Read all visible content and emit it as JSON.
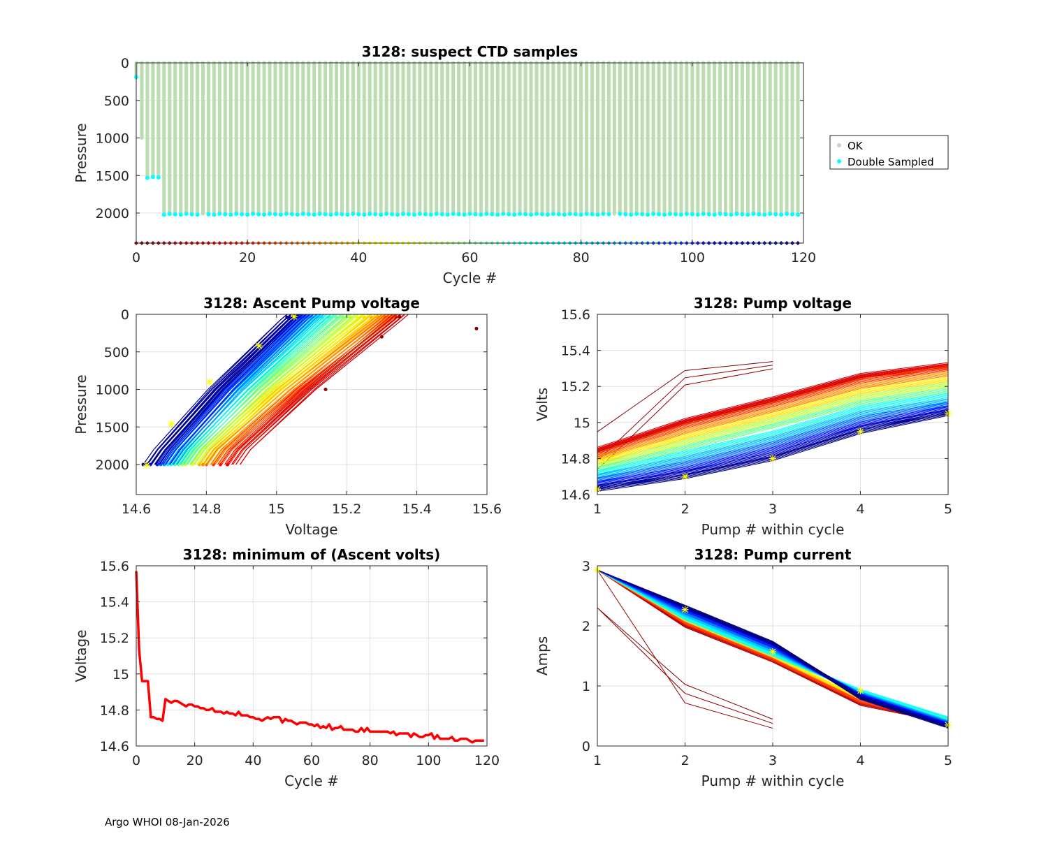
{
  "footer": "Argo WHOI 08-Jan-2026",
  "chart_data": [
    {
      "id": "ctd",
      "type": "scatter",
      "title": "3128: suspect CTD samples",
      "xlabel": "Cycle #",
      "ylabel": "Pressure",
      "xlim": [
        0,
        120
      ],
      "ylim": [
        0,
        2400
      ],
      "y_reversed": true,
      "xticks": [
        0,
        20,
        40,
        60,
        80,
        100,
        120
      ],
      "yticks": [
        0,
        500,
        1000,
        1500,
        2000
      ],
      "grid": true,
      "legend": {
        "placement": "outside-right",
        "entries": [
          {
            "label": "OK",
            "color": "#bcdcb2"
          },
          {
            "label": "Double Sampled",
            "color": "#00ffff"
          }
        ]
      },
      "cycles": [
        0,
        119
      ],
      "profile_depth_segments": [
        {
          "cycles": [
            0,
            0
          ],
          "pressure": 200
        },
        {
          "cycles": [
            1,
            1
          ],
          "pressure": 1000
        },
        {
          "cycles": [
            2,
            4
          ],
          "pressure": 1520
        },
        {
          "cycles": [
            5,
            119
          ],
          "pressure": 2010
        }
      ],
      "double_sampled_segments": [
        {
          "cycles": [
            0,
            0
          ],
          "pressure": 190
        },
        {
          "cycles": [
            2,
            4
          ],
          "pressure": 1520
        },
        {
          "cycles": [
            5,
            119
          ],
          "pressure": 2010
        }
      ],
      "no_double_sample_cycles": [
        1,
        12,
        86
      ],
      "cycle_marker_pressure": 2400
    },
    {
      "id": "ascent",
      "type": "line",
      "title": "3128: Ascent Pump voltage",
      "xlabel": "Voltage",
      "ylabel": "Pressure",
      "xlim": [
        14.6,
        15.6
      ],
      "ylim": [
        0,
        2400
      ],
      "y_reversed": true,
      "xticks": [
        14.6,
        14.8,
        15,
        15.2,
        15.4,
        15.6
      ],
      "yticks": [
        0,
        500,
        1000,
        1500,
        2000
      ],
      "grid": true,
      "lines": [
        {
          "cycle": 5,
          "v_bottom": 14.86,
          "v_top": 15.34
        },
        {
          "cycle": 10,
          "v_bottom": 14.86,
          "v_top": 15.33
        },
        {
          "cycle": 15,
          "v_bottom": 14.84,
          "v_top": 15.32
        },
        {
          "cycle": 20,
          "v_bottom": 14.82,
          "v_top": 15.31
        },
        {
          "cycle": 25,
          "v_bottom": 14.8,
          "v_top": 15.3
        },
        {
          "cycle": 30,
          "v_bottom": 14.79,
          "v_top": 15.29
        },
        {
          "cycle": 35,
          "v_bottom": 14.78,
          "v_top": 15.27
        },
        {
          "cycle": 40,
          "v_bottom": 14.76,
          "v_top": 15.25
        },
        {
          "cycle": 45,
          "v_bottom": 14.76,
          "v_top": 15.23
        },
        {
          "cycle": 50,
          "v_bottom": 14.74,
          "v_top": 15.21
        },
        {
          "cycle": 55,
          "v_bottom": 14.73,
          "v_top": 15.19
        },
        {
          "cycle": 60,
          "v_bottom": 14.72,
          "v_top": 15.17
        },
        {
          "cycle": 65,
          "v_bottom": 14.71,
          "v_top": 15.15
        },
        {
          "cycle": 70,
          "v_bottom": 14.7,
          "v_top": 15.13
        },
        {
          "cycle": 75,
          "v_bottom": 14.69,
          "v_top": 15.12
        },
        {
          "cycle": 80,
          "v_bottom": 14.68,
          "v_top": 15.1
        },
        {
          "cycle": 85,
          "v_bottom": 14.68,
          "v_top": 15.09
        },
        {
          "cycle": 90,
          "v_bottom": 14.67,
          "v_top": 15.08
        },
        {
          "cycle": 95,
          "v_bottom": 14.66,
          "v_top": 15.07
        },
        {
          "cycle": 100,
          "v_bottom": 14.66,
          "v_top": 15.06
        },
        {
          "cycle": 105,
          "v_bottom": 14.64,
          "v_top": 15.05
        },
        {
          "cycle": 110,
          "v_bottom": 14.63,
          "v_top": 15.04
        },
        {
          "cycle": 115,
          "v_bottom": 14.62,
          "v_top": 15.03
        },
        {
          "cycle": 119,
          "v_bottom": 14.63,
          "v_top": 15.03
        }
      ],
      "outliers": [
        {
          "cycle": 0,
          "voltage": 15.57,
          "pressure": 190
        },
        {
          "cycle": 1,
          "voltage": 15.14,
          "pressure": 1000
        },
        {
          "cycle": 3,
          "voltage": 15.3,
          "pressure": 300
        },
        {
          "cycle": 2,
          "voltage": 15.35,
          "pressure": 30
        }
      ],
      "highlight_points": [
        {
          "voltage": 14.63,
          "pressure": 2010
        },
        {
          "voltage": 14.7,
          "pressure": 1460
        },
        {
          "voltage": 14.81,
          "pressure": 900
        },
        {
          "voltage": 14.95,
          "pressure": 420
        },
        {
          "voltage": 15.05,
          "pressure": 30
        }
      ]
    },
    {
      "id": "pumpv",
      "type": "line",
      "title": "3128: Pump voltage",
      "xlabel": "Pump # within cycle",
      "ylabel": "Volts",
      "xlim": [
        1,
        5
      ],
      "ylim": [
        14.6,
        15.6
      ],
      "xticks": [
        1,
        2,
        3,
        4,
        5
      ],
      "yticks": [
        14.6,
        14.8,
        15,
        15.2,
        15.4,
        15.6
      ],
      "grid": true,
      "series": [
        {
          "cycle": 5,
          "values": [
            14.85,
            15.01,
            15.13,
            15.26,
            15.32
          ]
        },
        {
          "cycle": 10,
          "values": [
            14.84,
            15.0,
            15.12,
            15.25,
            15.31
          ]
        },
        {
          "cycle": 20,
          "values": [
            14.82,
            14.98,
            15.1,
            15.23,
            15.3
          ]
        },
        {
          "cycle": 30,
          "values": [
            14.8,
            14.95,
            15.07,
            15.2,
            15.27
          ]
        },
        {
          "cycle": 40,
          "values": [
            14.78,
            14.92,
            15.04,
            15.17,
            15.24
          ]
        },
        {
          "cycle": 50,
          "values": [
            14.76,
            14.89,
            15.01,
            15.14,
            15.21
          ]
        },
        {
          "cycle": 60,
          "values": [
            14.74,
            14.86,
            14.98,
            15.11,
            15.18
          ]
        },
        {
          "cycle": 70,
          "values": [
            14.72,
            14.83,
            14.94,
            15.08,
            15.15
          ]
        },
        {
          "cycle": 80,
          "values": [
            14.7,
            14.8,
            14.91,
            15.05,
            15.12
          ]
        },
        {
          "cycle": 90,
          "values": [
            14.68,
            14.77,
            14.88,
            15.02,
            15.1
          ]
        },
        {
          "cycle": 100,
          "values": [
            14.66,
            14.74,
            14.85,
            14.99,
            15.08
          ]
        },
        {
          "cycle": 110,
          "values": [
            14.64,
            14.72,
            14.82,
            14.97,
            15.06
          ]
        },
        {
          "cycle": 119,
          "values": [
            14.63,
            14.7,
            14.8,
            14.95,
            15.05
          ]
        },
        {
          "cycle": 0,
          "values": [
            14.96,
            15.3,
            15.35,
            null,
            null
          ]
        },
        {
          "cycle": 2,
          "values": [
            14.8,
            15.26,
            15.33,
            null,
            null
          ]
        },
        {
          "cycle": 3,
          "values": [
            14.75,
            15.22,
            15.31,
            null,
            null
          ]
        }
      ],
      "highlight_points": [
        [
          1,
          14.63
        ],
        [
          2,
          14.7
        ],
        [
          3,
          14.8
        ],
        [
          4,
          14.95
        ],
        [
          5,
          15.05
        ]
      ]
    },
    {
      "id": "minv",
      "type": "line",
      "title": "3128: minimum of (Ascent volts)",
      "xlabel": "Cycle #",
      "ylabel": "Voltage",
      "xlim": [
        0,
        120
      ],
      "ylim": [
        14.6,
        15.6
      ],
      "xticks": [
        0,
        20,
        40,
        60,
        80,
        100,
        120
      ],
      "yticks": [
        14.6,
        14.8,
        15,
        15.2,
        15.4,
        15.6
      ],
      "grid": true,
      "color": "#ff0000",
      "x_start": 0,
      "values": [
        15.57,
        15.13,
        14.96,
        14.96,
        14.96,
        14.76,
        14.76,
        14.75,
        14.75,
        14.74,
        14.86,
        14.85,
        14.84,
        14.85,
        14.85,
        14.84,
        14.83,
        14.82,
        14.83,
        14.83,
        14.82,
        14.82,
        14.81,
        14.81,
        14.8,
        14.8,
        14.81,
        14.79,
        14.79,
        14.79,
        14.78,
        14.79,
        14.78,
        14.78,
        14.77,
        14.79,
        14.77,
        14.77,
        14.77,
        14.76,
        14.76,
        14.75,
        14.75,
        14.74,
        14.75,
        14.76,
        14.75,
        14.76,
        14.76,
        14.76,
        14.73,
        14.75,
        14.74,
        14.74,
        14.73,
        14.72,
        14.73,
        14.73,
        14.73,
        14.72,
        14.72,
        14.71,
        14.72,
        14.7,
        14.71,
        14.7,
        14.72,
        14.69,
        14.7,
        14.7,
        14.71,
        14.69,
        14.69,
        14.69,
        14.69,
        14.68,
        14.68,
        14.7,
        14.68,
        14.7,
        14.68,
        14.68,
        14.68,
        14.68,
        14.68,
        14.68,
        14.68,
        14.67,
        14.68,
        14.66,
        14.67,
        14.67,
        14.67,
        14.67,
        14.65,
        14.67,
        14.66,
        14.65,
        14.65,
        14.66,
        14.66,
        14.67,
        14.64,
        14.66,
        14.64,
        14.64,
        14.64,
        14.64,
        14.65,
        14.63,
        14.63,
        14.64,
        14.64,
        14.64,
        14.63,
        14.62,
        14.63,
        14.63,
        14.63,
        14.63
      ]
    },
    {
      "id": "pumpc",
      "type": "line",
      "title": "3128: Pump current",
      "xlabel": "Pump # within cycle",
      "ylabel": "Amps",
      "xlim": [
        1,
        5
      ],
      "ylim": [
        0,
        3
      ],
      "xticks": [
        1,
        2,
        3,
        4,
        5
      ],
      "yticks": [
        0,
        1,
        2,
        3
      ],
      "grid": true,
      "series": [
        {
          "cycle": 5,
          "values": [
            2.93,
            2.0,
            1.42,
            0.7,
            0.4
          ]
        },
        {
          "cycle": 20,
          "values": [
            2.93,
            2.05,
            1.45,
            0.74,
            0.42
          ]
        },
        {
          "cycle": 40,
          "values": [
            2.93,
            2.1,
            1.5,
            0.8,
            0.44
          ]
        },
        {
          "cycle": 60,
          "values": [
            2.93,
            2.15,
            1.55,
            0.9,
            0.45
          ]
        },
        {
          "cycle": 70,
          "values": [
            2.93,
            2.12,
            1.52,
            0.92,
            0.46
          ]
        },
        {
          "cycle": 80,
          "values": [
            2.93,
            2.18,
            1.58,
            0.88,
            0.4
          ]
        },
        {
          "cycle": 90,
          "values": [
            2.93,
            2.22,
            1.62,
            0.86,
            0.38
          ]
        },
        {
          "cycle": 100,
          "values": [
            2.93,
            2.26,
            1.66,
            0.84,
            0.36
          ]
        },
        {
          "cycle": 110,
          "values": [
            2.93,
            2.3,
            1.7,
            0.82,
            0.34
          ]
        },
        {
          "cycle": 119,
          "values": [
            2.93,
            2.32,
            1.72,
            0.8,
            0.32
          ]
        },
        {
          "cycle": 0,
          "values": [
            2.3,
            1.05,
            0.47,
            null,
            null
          ]
        },
        {
          "cycle": 2,
          "values": [
            2.3,
            0.9,
            0.4,
            null,
            null
          ]
        },
        {
          "cycle": 3,
          "values": [
            2.93,
            0.74,
            0.32,
            null,
            null
          ]
        }
      ],
      "highlight_points": [
        [
          1,
          2.93
        ],
        [
          2,
          2.27
        ],
        [
          3,
          1.57
        ],
        [
          4,
          0.92
        ],
        [
          5,
          0.35
        ]
      ]
    }
  ]
}
